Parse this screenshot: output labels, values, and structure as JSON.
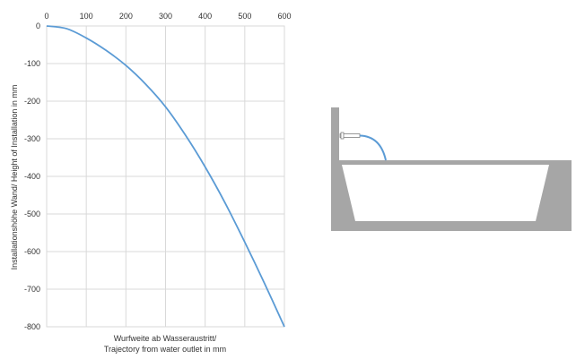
{
  "chart_data": {
    "type": "line",
    "x_ticks": [
      0,
      100,
      200,
      300,
      400,
      500,
      600
    ],
    "y_ticks": [
      0,
      -100,
      -200,
      -300,
      -400,
      -500,
      -600,
      -700,
      -800
    ],
    "xlim": [
      0,
      600
    ],
    "ylim": [
      -800,
      0
    ],
    "x_axis_position": "top",
    "grid": true,
    "xlabel_line1": "Wurfweite  ab Wasseraustritt/",
    "xlabel_line2": "Trajectory from water outlet  in mm",
    "ylabel": "Installationshöhe  Wand/  Height  of Installation  in mm",
    "series": [
      {
        "x": [
          0,
          50,
          100,
          150,
          200,
          250,
          300,
          350,
          400,
          450,
          500,
          550,
          600
        ],
        "y": [
          0,
          -7,
          -32,
          -65,
          -105,
          -155,
          -215,
          -290,
          -375,
          -470,
          -575,
          -685,
          -800
        ]
      }
    ],
    "line_color": "#5b9bd5"
  },
  "illustration": {
    "description_icon": "bathtub-with-wall-spout-icon",
    "wall_color": "#a6a6a6",
    "jet_color": "#5b9bd5"
  }
}
